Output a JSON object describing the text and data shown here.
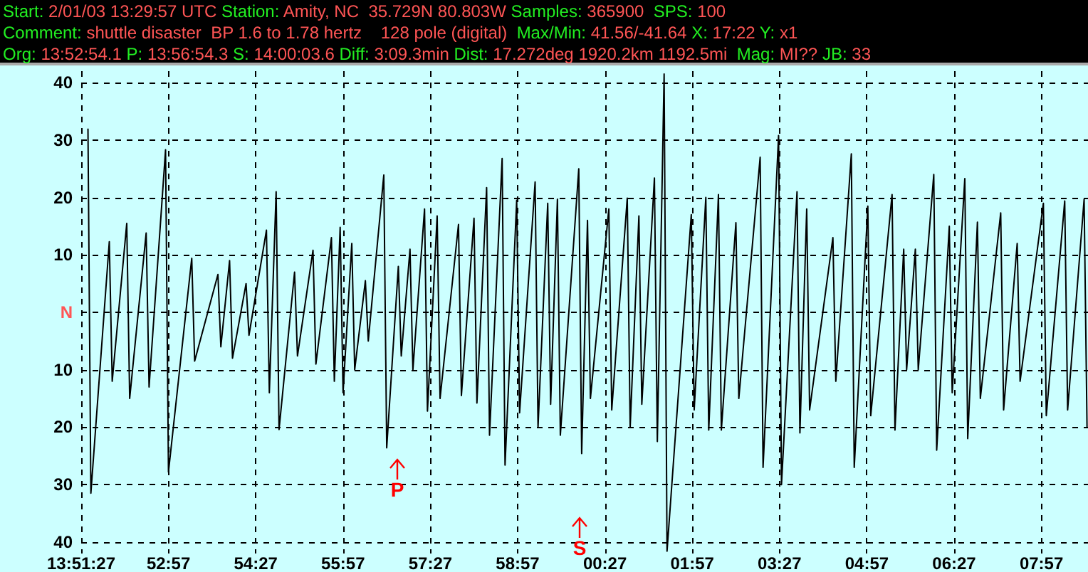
{
  "chart_data": {
    "type": "line",
    "title": "Start: 2/01/03 13:29:57 UTC Station: Amity, NC  35.729N 80.803W Samples: 365900  SPS: 100",
    "subtitle": "Comment: shuttle disaster  BP 1.6 to 1.78 hertz    128 pole (digital)  Max/Min: 41.56/-41.64 X: 17:22 Y: x1",
    "annotations": [
      "Org: 13:52:54.1 P: 13:56:54.3 S: 14:00:03.6 Diff: 3:09.3min Dist: 17.272deg 1920.2km 1192.5mi  Mag: MI?? JB: 33",
      "P",
      "S"
    ],
    "x": [
      "--02-01T13:51:34",
      "--02-01T13:51:37",
      "--02-01T13:51:56",
      "--02-01T13:51:59",
      "--02-01T13:52:14",
      "--02-01T13:52:17",
      "--02-01T13:52:34",
      "--02-01T13:52:37",
      "--02-01T13:52:54",
      "--02-01T13:52:57",
      "--02-01T13:53:21",
      "--02-01T13:53:24",
      "--02-01T13:53:48",
      "--02-01T13:53:51",
      "--02-01T13:54:00",
      "--02-01T13:54:03",
      "--02-01T13:54:17",
      "--02-01T13:54:20",
      "--02-01T13:54:38",
      "--02-01T13:54:41",
      "--02-01T13:54:48",
      "--02-01T13:54:51",
      "--02-01T13:55:07",
      "--02-01T13:55:10",
      "--02-01T13:55:26",
      "--02-01T13:55:29",
      "--02-01T13:55:45",
      "--02-01T13:55:48",
      "--02-01T13:55:54",
      "--02-01T13:55:57",
      "--02-01T13:56:06",
      "--02-01T13:56:09",
      "--02-01T13:56:20",
      "--02-01T13:56:23",
      "--02-01T13:56:39",
      "--02-01T13:56:42",
      "--02-01T13:56:54",
      "--02-01T13:56:57",
      "--02-01T13:57:06",
      "--02-01T13:57:09",
      "--02-01T13:57:21",
      "--02-01T13:57:24",
      "--02-01T13:57:34",
      "--02-01T13:57:37",
      "--02-01T13:57:56",
      "--02-01T13:57:59",
      "--02-01T13:58:12",
      "--02-01T13:58:15",
      "--02-01T13:58:25",
      "--02-01T13:58:28",
      "--02-01T13:58:41",
      "--02-01T13:58:44",
      "--02-01T13:58:56",
      "--02-01T13:58:59",
      "--02-01T13:59:15",
      "--02-01T13:59:18",
      "--02-01T13:59:28",
      "--02-01T13:59:31",
      "--02-01T13:59:38",
      "--02-01T13:59:41",
      "--02-01T14:00:00",
      "--02-01T14:00:03",
      "--02-01T14:00:09",
      "--02-01T14:00:12",
      "--02-01T14:00:31",
      "--02-01T14:00:34",
      "--02-01T14:00:50",
      "--02-01T14:00:53",
      "--02-01T14:01:02",
      "--02-01T14:01:05",
      "--02-01T14:01:18",
      "--02-01T14:01:21",
      "--02-01T14:01:28",
      "--02-01T14:01:31",
      "--02-01T14:01:56",
      "--02-01T14:01:59",
      "--02-01T14:02:11",
      "--02-01T14:02:14",
      "--02-01T14:02:24",
      "--02-01T14:02:27",
      "--02-01T14:02:42",
      "--02-01T14:02:45",
      "--02-01T14:03:07",
      "--02-01T14:03:10",
      "--02-01T14:03:26",
      "--02-01T14:03:29",
      "--02-01T14:03:45",
      "--02-01T14:03:48",
      "--02-01T14:03:55",
      "--02-01T14:03:58",
      "--02-01T14:04:22",
      "--02-01T14:04:25",
      "--02-01T14:04:41",
      "--02-01T14:04:44",
      "--02-01T14:04:58",
      "--02-01T14:05:01",
      "--02-01T14:05:23",
      "--02-01T14:05:26",
      "--02-01T14:05:35",
      "--02-01T14:05:38",
      "--02-01T14:05:47",
      "--02-01T14:05:50",
      "--02-01T14:06:06",
      "--02-01T14:06:09",
      "--02-01T14:06:22",
      "--02-01T14:06:25",
      "--02-01T14:06:38",
      "--02-01T14:06:41",
      "--02-01T14:06:51",
      "--02-01T14:06:54",
      "--02-01T14:07:15",
      "--02-01T14:07:18",
      "--02-01T14:07:32",
      "--02-01T14:07:35",
      "--02-01T14:07:59",
      "--02-01T14:08:02",
      "--02-01T14:08:21",
      "--02-01T14:08:24",
      "--02-01T14:08:41",
      "--02-01T14:08:44"
    ],
    "series": [
      {
        "color": "#000000",
        "values": [
          32,
          -31.5,
          12.3,
          -12,
          15.5,
          -15,
          13.8,
          -13,
          28.3,
          -27.8,
          9.4,
          -8.5,
          6.6,
          -6,
          9,
          -8,
          5,
          -4,
          14.3,
          -14,
          21,
          -20.4,
          7,
          -7.6,
          10.8,
          -9,
          13,
          -12,
          14.8,
          -14,
          12,
          -10,
          5.5,
          -5,
          23.9,
          -23.6,
          8,
          -7.6,
          11,
          -10,
          18,
          -17.2,
          16.8,
          -15,
          15.3,
          -14.5,
          16.4,
          -15.8,
          21.7,
          -21.4,
          26.8,
          -26.6,
          19.5,
          -17.5,
          22.7,
          -20,
          19,
          -16,
          19.7,
          -21.4,
          25,
          -24.6,
          16,
          -15,
          18,
          -17,
          19.9,
          -20,
          16.8,
          -16,
          23.4,
          -22.5,
          41.5,
          -41.6,
          17,
          -17,
          20,
          -20.5,
          20.5,
          -20.5,
          15.6,
          -15,
          27,
          -27,
          30.8,
          -30,
          21,
          -21,
          18,
          -17,
          13,
          -12,
          27.6,
          -27,
          18.5,
          -18,
          20.5,
          -20.5,
          11,
          -10,
          11,
          -10,
          24,
          -24,
          15,
          -14,
          23.3,
          -22,
          15.7,
          -15,
          17.3,
          -17,
          12,
          -12,
          19,
          -18,
          19.4,
          -17,
          19.7,
          -20
        ]
      }
    ],
    "xlim": [
      "--02-01T13:51:27",
      "--02-01T14:08:45"
    ],
    "xticks": [
      {
        "value": "--02-01T13:51:27",
        "label": "13:51:27"
      },
      {
        "value": "--02-01T13:52:57",
        "label": "52:57"
      },
      {
        "value": "--02-01T13:54:27",
        "label": "54:27"
      },
      {
        "value": "--02-01T13:55:57",
        "label": "55:57"
      },
      {
        "value": "--02-01T13:57:27",
        "label": "57:27"
      },
      {
        "value": "--02-01T13:58:57",
        "label": "58:57"
      },
      {
        "value": "--02-01T14:00:27",
        "label": "00:27"
      },
      {
        "value": "--02-01T14:01:57",
        "label": "01:57"
      },
      {
        "value": "--02-01T14:03:27",
        "label": "03:27"
      },
      {
        "value": "--02-01T14:04:57",
        "label": "04:57"
      },
      {
        "value": "--02-01T14:06:27",
        "label": "06:27"
      },
      {
        "value": "--02-01T14:07:57",
        "label": "07:57"
      }
    ],
    "ylim": [
      -42,
      42
    ],
    "yticks": [
      {
        "value": -40,
        "label": "40"
      },
      {
        "value": -30,
        "label": "30"
      },
      {
        "value": -20,
        "label": "20"
      },
      {
        "value": -10,
        "label": "10"
      },
      {
        "value": 0,
        "label": "N"
      },
      10,
      20,
      30,
      40
    ],
    "grid": true,
    "marker": "none",
    "line_style": "solid"
  }
}
